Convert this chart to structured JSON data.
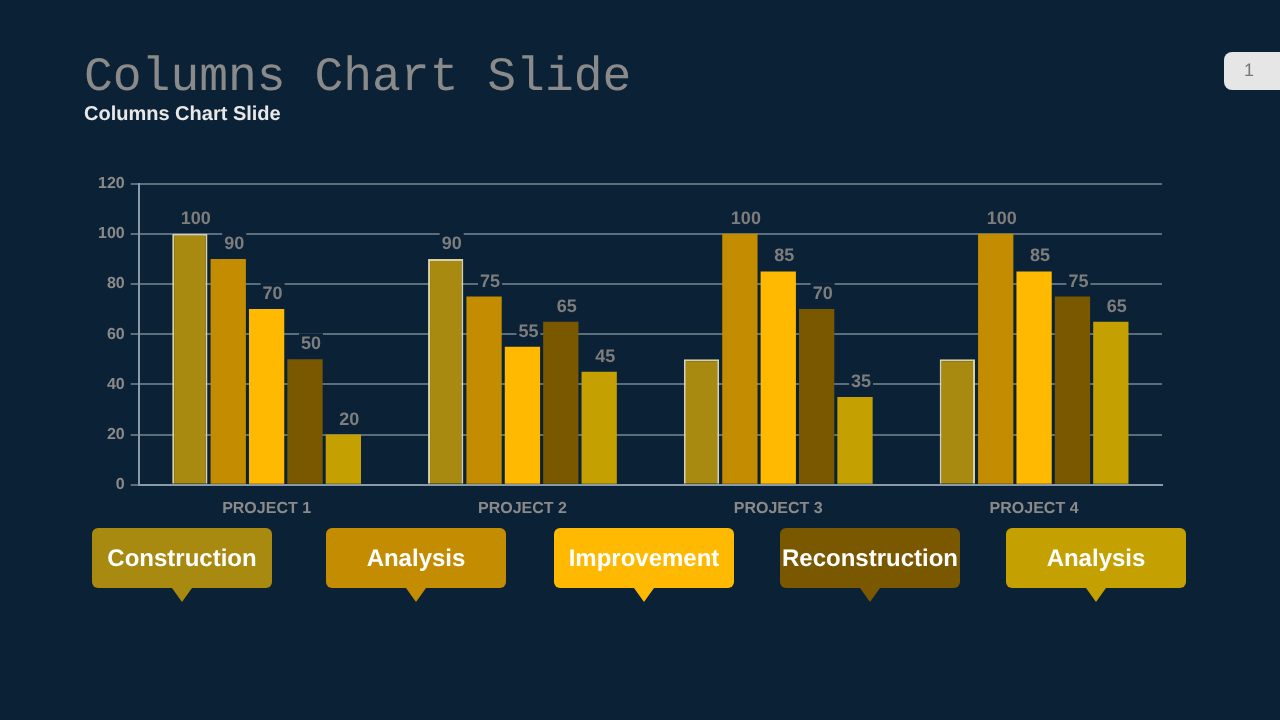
{
  "chart_data": {
    "type": "bar",
    "title": "Columns Chart Slide",
    "subtitle": "Columns Chart Slide",
    "annotations": [
      "1"
    ],
    "categories": [
      "PROJECT 1",
      "PROJECT 2",
      "PROJECT 3",
      "PROJECT 4"
    ],
    "series": [
      {
        "name": "Construction",
        "color": "#a88a10",
        "values": [
          100,
          90,
          50,
          50
        ],
        "value_labels": [
          "100",
          "90",
          null,
          null
        ]
      },
      {
        "name": "Analysis",
        "color": "#c48c00",
        "values": [
          90,
          75,
          100,
          100
        ],
        "value_labels": [
          "90",
          "75",
          "100",
          "100"
        ]
      },
      {
        "name": "Improvement",
        "color": "#ffb900",
        "values": [
          70,
          55,
          85,
          85
        ],
        "value_labels": [
          "70",
          "55",
          "85",
          "85"
        ]
      },
      {
        "name": "Reconstruction",
        "color": "#7a5800",
        "values": [
          50,
          65,
          70,
          75
        ],
        "value_labels": [
          "50",
          "65",
          "70",
          "75"
        ]
      },
      {
        "name": "Analysis",
        "color": "#c4a000",
        "values": [
          20,
          45,
          35,
          65
        ],
        "value_labels": [
          "20",
          "45",
          "35",
          "65"
        ]
      }
    ],
    "ylim": [
      0,
      120
    ],
    "yticks": [
      0,
      20,
      40,
      60,
      80,
      100,
      120
    ],
    "grid": "y",
    "legend": "bottom"
  }
}
